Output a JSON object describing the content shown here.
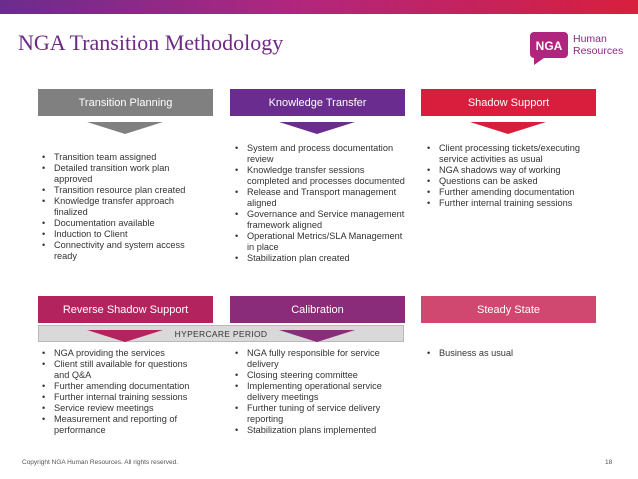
{
  "title": "NGA Transition Methodology",
  "logo": {
    "badge": "NGA",
    "line1": "Human",
    "line2": "Resources"
  },
  "colors": {
    "gray": "#808080",
    "purple": "#6a2c8e",
    "red": "#d81e3c",
    "crimson": "#b3245f",
    "magenta": "#8a2c7a",
    "pink": "#d0476f"
  },
  "phases": {
    "transition_planning": {
      "label": "Transition Planning",
      "items": [
        "Transition team assigned",
        "Detailed transition work plan approved",
        "Transition resource plan created",
        "Knowledge transfer approach finalized",
        "Documentation available",
        "Induction to Client",
        "Connectivity and system access ready"
      ]
    },
    "knowledge_transfer": {
      "label": "Knowledge Transfer",
      "items": [
        "System and process documentation review",
        "Knowledge transfer sessions completed and processes documented",
        "Release and Transport management aligned",
        "Governance and Service management framework aligned",
        "Operational Metrics/SLA Management in place",
        "Stabilization plan created"
      ]
    },
    "shadow_support": {
      "label": "Shadow Support",
      "items": [
        "Client processing tickets/executing service activities as usual",
        "NGA shadows way of working",
        "Questions can be asked",
        "Further amending documentation",
        "Further internal training sessions"
      ]
    },
    "reverse_shadow_support": {
      "label": "Reverse Shadow Support",
      "items": [
        "NGA providing the services",
        "Client still available for questions and Q&A",
        "Further amending documentation",
        "Further internal training sessions",
        "Service review meetings",
        "Measurement and reporting of performance"
      ]
    },
    "calibration": {
      "label": "Calibration",
      "items": [
        "NGA fully responsible for service delivery",
        "Closing steering committee",
        "Implementing operational service delivery meetings",
        "Further tuning of service delivery reporting",
        "Stabilization plans implemented"
      ]
    },
    "steady_state": {
      "label": "Steady State",
      "items": [
        "Business as usual"
      ]
    }
  },
  "hypercare_label": "HYPERCARE PERIOD",
  "footer": {
    "copyright": "Copyright NGA Human Resources. All rights reserved.",
    "page": "18"
  }
}
